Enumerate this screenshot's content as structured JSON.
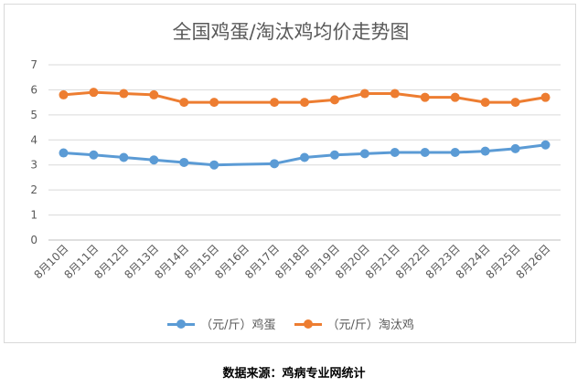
{
  "chart_data": {
    "type": "line",
    "title": "全国鸡蛋/淘汰鸡均价走势图",
    "categories": [
      "8月10日",
      "8月11日",
      "8月12日",
      "8月13日",
      "8月14日",
      "8月15日",
      "8月16日",
      "8月17日",
      "8月18日",
      "8月19日",
      "8月20日",
      "8月21日",
      "8月22日",
      "8月23日",
      "8月24日",
      "8月25日",
      "8月26日"
    ],
    "series": [
      {
        "name": "（元/斤）鸡蛋",
        "color": "#5b9bd5",
        "values": [
          3.48,
          3.4,
          3.3,
          3.2,
          3.1,
          3.0,
          null,
          3.05,
          3.3,
          3.4,
          3.45,
          3.5,
          3.5,
          3.5,
          3.55,
          3.65,
          3.8
        ]
      },
      {
        "name": "（元/斤）淘汰鸡",
        "color": "#ed7d31",
        "values": [
          5.8,
          5.9,
          5.85,
          5.8,
          5.5,
          5.5,
          null,
          5.5,
          5.5,
          5.6,
          5.85,
          5.85,
          5.7,
          5.7,
          5.5,
          5.5,
          5.7
        ]
      }
    ],
    "ylim": [
      0,
      7
    ],
    "yticks": [
      0,
      1,
      2,
      3,
      4,
      5,
      6,
      7
    ],
    "grid": true,
    "legend": "bottom"
  },
  "source_note": "数据来源：鸡病专业网统计"
}
